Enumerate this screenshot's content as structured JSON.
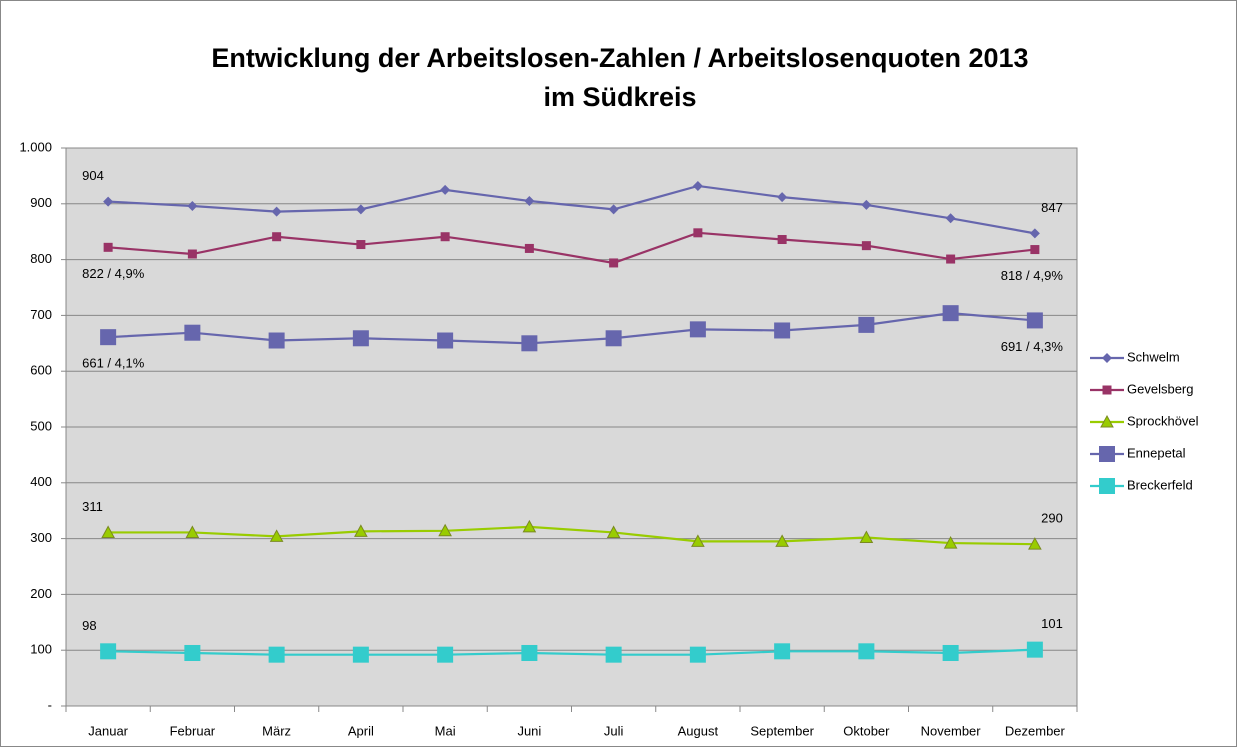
{
  "chart_data": {
    "type": "line",
    "title": [
      "Entwicklung der Arbeitslosen-Zahlen / Arbeitslosenquoten 2013",
      "im Südkreis"
    ],
    "categories": [
      "Januar",
      "Februar",
      "März",
      "April",
      "Mai",
      "Juni",
      "Juli",
      "August",
      "September",
      "Oktober",
      "November",
      "Dezember"
    ],
    "ylim": [
      0,
      1000
    ],
    "yticks": [
      {
        "value": 0,
        "label": "-"
      },
      100,
      200,
      300,
      400,
      500,
      600,
      700,
      800,
      900,
      {
        "value": 1000,
        "label": "1.000"
      }
    ],
    "grid": true,
    "legend": "right",
    "series": [
      {
        "name": "Schwelm",
        "color": "#6666ad",
        "marker": "diamond",
        "values": [
          904,
          896,
          886,
          890,
          925,
          905,
          890,
          932,
          912,
          898,
          874,
          847
        ],
        "value_labels": [
          "904",
          null,
          null,
          null,
          null,
          null,
          null,
          null,
          null,
          null,
          null,
          "847"
        ]
      },
      {
        "name": "Gevelsberg",
        "color": "#993366",
        "marker": "square",
        "values": [
          822,
          810,
          841,
          827,
          841,
          820,
          794,
          848,
          836,
          825,
          801,
          818
        ],
        "value_labels": [
          "822 / 4,9%",
          null,
          null,
          null,
          null,
          null,
          null,
          null,
          null,
          null,
          null,
          "818 / 4,9%"
        ]
      },
      {
        "name": "Sprockhövel",
        "color": "#99cc00",
        "marker": "triangle",
        "values": [
          311,
          311,
          304,
          313,
          314,
          321,
          311,
          295,
          295,
          302,
          292,
          290
        ],
        "value_labels": [
          "311",
          null,
          null,
          null,
          null,
          null,
          null,
          null,
          null,
          null,
          null,
          "290"
        ]
      },
      {
        "name": "Ennepetal",
        "color": "#6666ad",
        "marker": "big-square",
        "values": [
          661,
          669,
          655,
          659,
          655,
          650,
          659,
          675,
          673,
          683,
          704,
          691
        ],
        "value_labels": [
          "661 / 4,1%",
          null,
          null,
          null,
          null,
          null,
          null,
          null,
          null,
          null,
          null,
          "691 / 4,3%"
        ]
      },
      {
        "name": "Breckerfeld",
        "color": "#33cccc",
        "marker": "big-square",
        "values": [
          98,
          95,
          92,
          92,
          92,
          95,
          92,
          92,
          98,
          98,
          95,
          101
        ],
        "value_labels": [
          "98",
          null,
          null,
          null,
          null,
          null,
          null,
          null,
          null,
          null,
          null,
          "101"
        ]
      }
    ]
  }
}
